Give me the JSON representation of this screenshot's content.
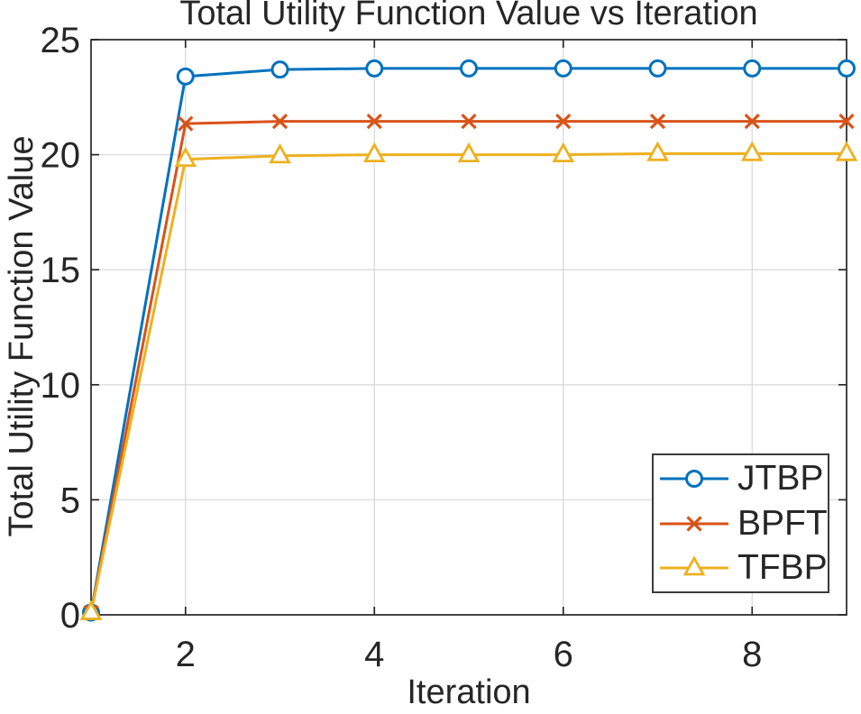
{
  "chart_data": {
    "type": "line",
    "title": "Total Utility Function Value vs Iteration",
    "xlabel": "Iteration",
    "ylabel": "Total Utility Function Value",
    "x": [
      1,
      2,
      3,
      4,
      5,
      6,
      7,
      8,
      9
    ],
    "xlim": [
      1,
      9
    ],
    "ylim": [
      0,
      25
    ],
    "x_ticks": [
      2,
      4,
      6,
      8
    ],
    "y_ticks": [
      0,
      5,
      10,
      15,
      20,
      25
    ],
    "grid": true,
    "legend_position": "inside-bottom-right",
    "series": [
      {
        "name": "JTBP",
        "color": "#0072BD",
        "marker": "circle",
        "values": [
          0.1,
          23.4,
          23.7,
          23.75,
          23.75,
          23.75,
          23.75,
          23.75,
          23.75
        ]
      },
      {
        "name": "BPFT",
        "color": "#D95319",
        "marker": "x",
        "values": [
          0.1,
          21.35,
          21.45,
          21.45,
          21.45,
          21.45,
          21.45,
          21.45,
          21.45
        ]
      },
      {
        "name": "TFBP",
        "color": "#EDB120",
        "marker": "triangle",
        "values": [
          0.1,
          19.8,
          19.95,
          20.0,
          20.0,
          20.0,
          20.05,
          20.05,
          20.05
        ]
      }
    ]
  },
  "style": {
    "axis_color": "#262626",
    "grid_color": "#dbdbdb",
    "background": "#ffffff",
    "tick_label_color": "#262626"
  }
}
